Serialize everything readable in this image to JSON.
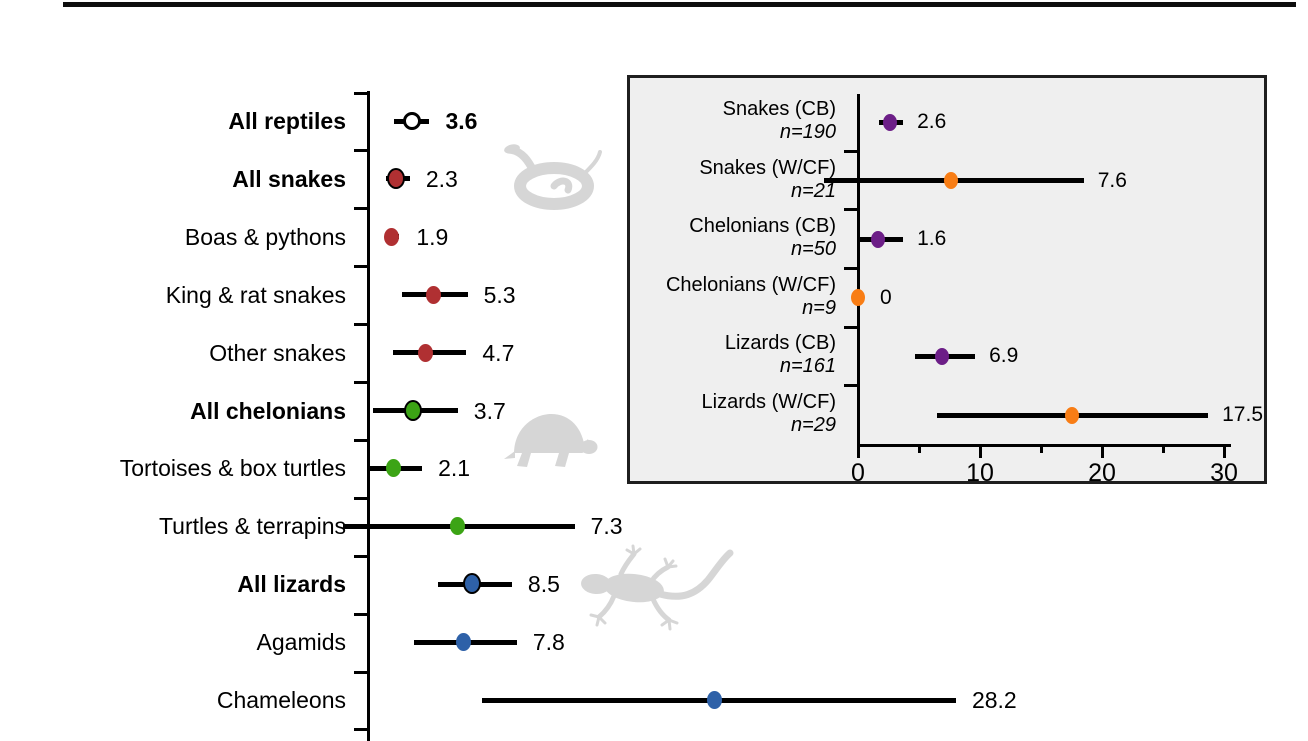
{
  "colors": {
    "snakes": "#B03032",
    "chelonians": "#3CA415",
    "lizards": "#2E61A8",
    "captive_bred": "#6C1E87",
    "wild_caught_farmed": "#F87D15",
    "silhouette_grey": "#D6D6D6",
    "inset_background": "#EFEFEF",
    "axis_black": "#000000"
  },
  "chart_data": [
    {
      "id": "main",
      "type": "scatter",
      "subtype": "dot-and-ci-forest-plot",
      "orientation": "horizontal",
      "xlim": [
        0,
        48
      ],
      "grid": false,
      "rows": [
        {
          "label": "All reptiles",
          "bold": true,
          "value": 3.6,
          "value_label": "3.6",
          "value_bold": true,
          "ci": [
            2.1,
            5.0
          ],
          "marker": "open",
          "color": "#FFFFFF"
        },
        {
          "label": "All snakes",
          "bold": true,
          "value": 2.3,
          "value_label": "2.3",
          "value_bold": false,
          "ci": [
            1.5,
            3.4
          ],
          "marker": "ring",
          "color": "#B03032"
        },
        {
          "label": "Boas & pythons",
          "bold": false,
          "value": 1.9,
          "value_label": "1.9",
          "value_bold": false,
          "ci": [
            1.4,
            2.5
          ],
          "marker": "dot",
          "color": "#B03032"
        },
        {
          "label": "King & rat snakes",
          "bold": false,
          "value": 5.3,
          "value_label": "5.3",
          "value_bold": false,
          "ci": [
            2.8,
            8.1
          ],
          "marker": "dot",
          "color": "#B03032"
        },
        {
          "label": "Other snakes",
          "bold": false,
          "value": 4.7,
          "value_label": "4.7",
          "value_bold": false,
          "ci": [
            2.0,
            8.0
          ],
          "marker": "dot",
          "color": "#B03032"
        },
        {
          "label": "All chelonians",
          "bold": true,
          "value": 3.7,
          "value_label": "3.7",
          "value_bold": false,
          "ci": [
            0.4,
            7.3
          ],
          "marker": "ring",
          "color": "#3CA415"
        },
        {
          "label": "Tortoises & box turtles",
          "bold": false,
          "value": 2.1,
          "value_label": "2.1",
          "value_bold": false,
          "ci": [
            0.0,
            4.4
          ],
          "marker": "dot",
          "color": "#3CA415"
        },
        {
          "label": "Turtles & terrapins",
          "bold": false,
          "value": 7.3,
          "value_label": "7.3",
          "value_bold": false,
          "ci": [
            -2.0,
            16.8
          ],
          "marker": "dot",
          "color": "#3CA415"
        },
        {
          "label": "All lizards",
          "bold": true,
          "value": 8.5,
          "value_label": "8.5",
          "value_bold": false,
          "ci": [
            5.7,
            11.7
          ],
          "marker": "ring",
          "color": "#2E61A8"
        },
        {
          "label": "Agamids",
          "bold": false,
          "value": 7.8,
          "value_label": "7.8",
          "value_bold": false,
          "ci": [
            3.7,
            12.1
          ],
          "marker": "dot",
          "color": "#2E61A8"
        },
        {
          "label": "Chameleons",
          "bold": false,
          "value": 28.2,
          "value_label": "28.2",
          "value_bold": false,
          "ci": [
            9.3,
            47.8
          ],
          "marker": "dot",
          "color": "#2E61A8"
        }
      ]
    },
    {
      "id": "inset",
      "type": "scatter",
      "subtype": "dot-and-ci-forest-plot",
      "orientation": "horizontal",
      "xlim": [
        0,
        31
      ],
      "grid": false,
      "x_ticks": [
        {
          "value": 0,
          "label": "0"
        },
        {
          "value": 10,
          "label": "10"
        },
        {
          "value": 20,
          "label": "20"
        },
        {
          "value": 30,
          "label": "30"
        }
      ],
      "x_minor_ticks": [
        5,
        15,
        25
      ],
      "rows": [
        {
          "label": "Snakes (CB)",
          "n_label": "n=190",
          "value": 2.6,
          "value_label": "2.6",
          "ci": [
            1.7,
            3.7
          ],
          "color": "#6C1E87"
        },
        {
          "label": "Snakes (W/CF)",
          "n_label": "n=21",
          "value": 7.6,
          "value_label": "7.6",
          "ci": [
            -2.8,
            18.5
          ],
          "color": "#F87D15"
        },
        {
          "label": "Chelonians (CB)",
          "n_label": "n=50",
          "value": 1.6,
          "value_label": "1.6",
          "ci": [
            0.0,
            3.7
          ],
          "color": "#6C1E87"
        },
        {
          "label": "Chelonians (W/CF)",
          "n_label": "n=9",
          "value": 0,
          "value_label": "0",
          "ci": null,
          "color": "#F87D15"
        },
        {
          "label": "Lizards (CB)",
          "n_label": "n=161",
          "value": 6.9,
          "value_label": "6.9",
          "ci": [
            4.7,
            9.6
          ],
          "color": "#6C1E87"
        },
        {
          "label": "Lizards (W/CF)",
          "n_label": "n=29",
          "value": 17.5,
          "value_label": "17.5",
          "ci": [
            6.5,
            28.7
          ],
          "color": "#F87D15"
        }
      ]
    }
  ]
}
